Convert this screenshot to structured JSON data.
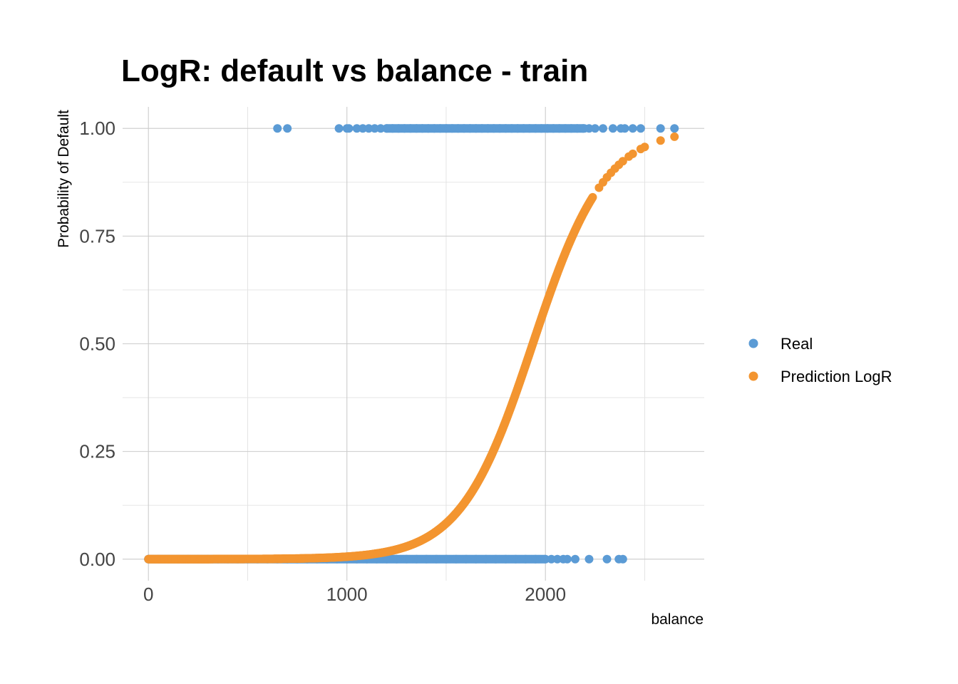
{
  "chart_data": {
    "type": "scatter",
    "title": "LogR: default vs balance - train",
    "xlabel": "balance",
    "ylabel": "Probability of Default",
    "xlim": [
      -130,
      2800
    ],
    "ylim": [
      -0.05,
      1.05
    ],
    "x_ticks": [
      0,
      1000,
      2000
    ],
    "x_tick_labels": [
      "0",
      "1000",
      "2000"
    ],
    "y_ticks": [
      0,
      0.25,
      0.5,
      0.75,
      1
    ],
    "y_tick_labels": [
      "0.00",
      "0.25",
      "0.50",
      "0.75",
      "1.00"
    ],
    "grid": true,
    "legend_position": "right",
    "colors": {
      "Real": "#5b9bd5",
      "Prediction LogR": "#f39530"
    },
    "series": [
      {
        "name": "Real",
        "color": "#5b9bd5",
        "points_y0_x": [
          0,
          50,
          100,
          150,
          200,
          250,
          300,
          350,
          400,
          450,
          500,
          550,
          600,
          650,
          700,
          750,
          800,
          850,
          900,
          950,
          1000,
          1050,
          1100,
          1150,
          1200,
          1250,
          1300,
          1350,
          1400,
          1450,
          1500,
          1550,
          1600,
          1650,
          1700,
          1750,
          1800,
          1850,
          1900,
          1950,
          2000,
          2030,
          2060,
          2090,
          2110,
          2150,
          2220,
          2310,
          2370,
          2390
        ],
        "points_y1_x": [
          650,
          700,
          960,
          1000,
          1010,
          1050,
          1080,
          1110,
          1140,
          1170,
          1200,
          1230,
          1260,
          1290,
          1320,
          1350,
          1380,
          1410,
          1440,
          1470,
          1500,
          1530,
          1560,
          1590,
          1620,
          1650,
          1680,
          1710,
          1740,
          1770,
          1800,
          1830,
          1860,
          1890,
          1920,
          1950,
          1980,
          2010,
          2040,
          2070,
          2100,
          2130,
          2160,
          2190,
          2220,
          2250,
          2290,
          2340,
          2380,
          2400,
          2440,
          2480,
          2580,
          2650
        ]
      },
      {
        "name": "Prediction LogR",
        "color": "#f39530",
        "model": {
          "intercept": -10.65,
          "coef": 0.0055,
          "x_range": [
            0,
            2650
          ]
        }
      }
    ]
  }
}
